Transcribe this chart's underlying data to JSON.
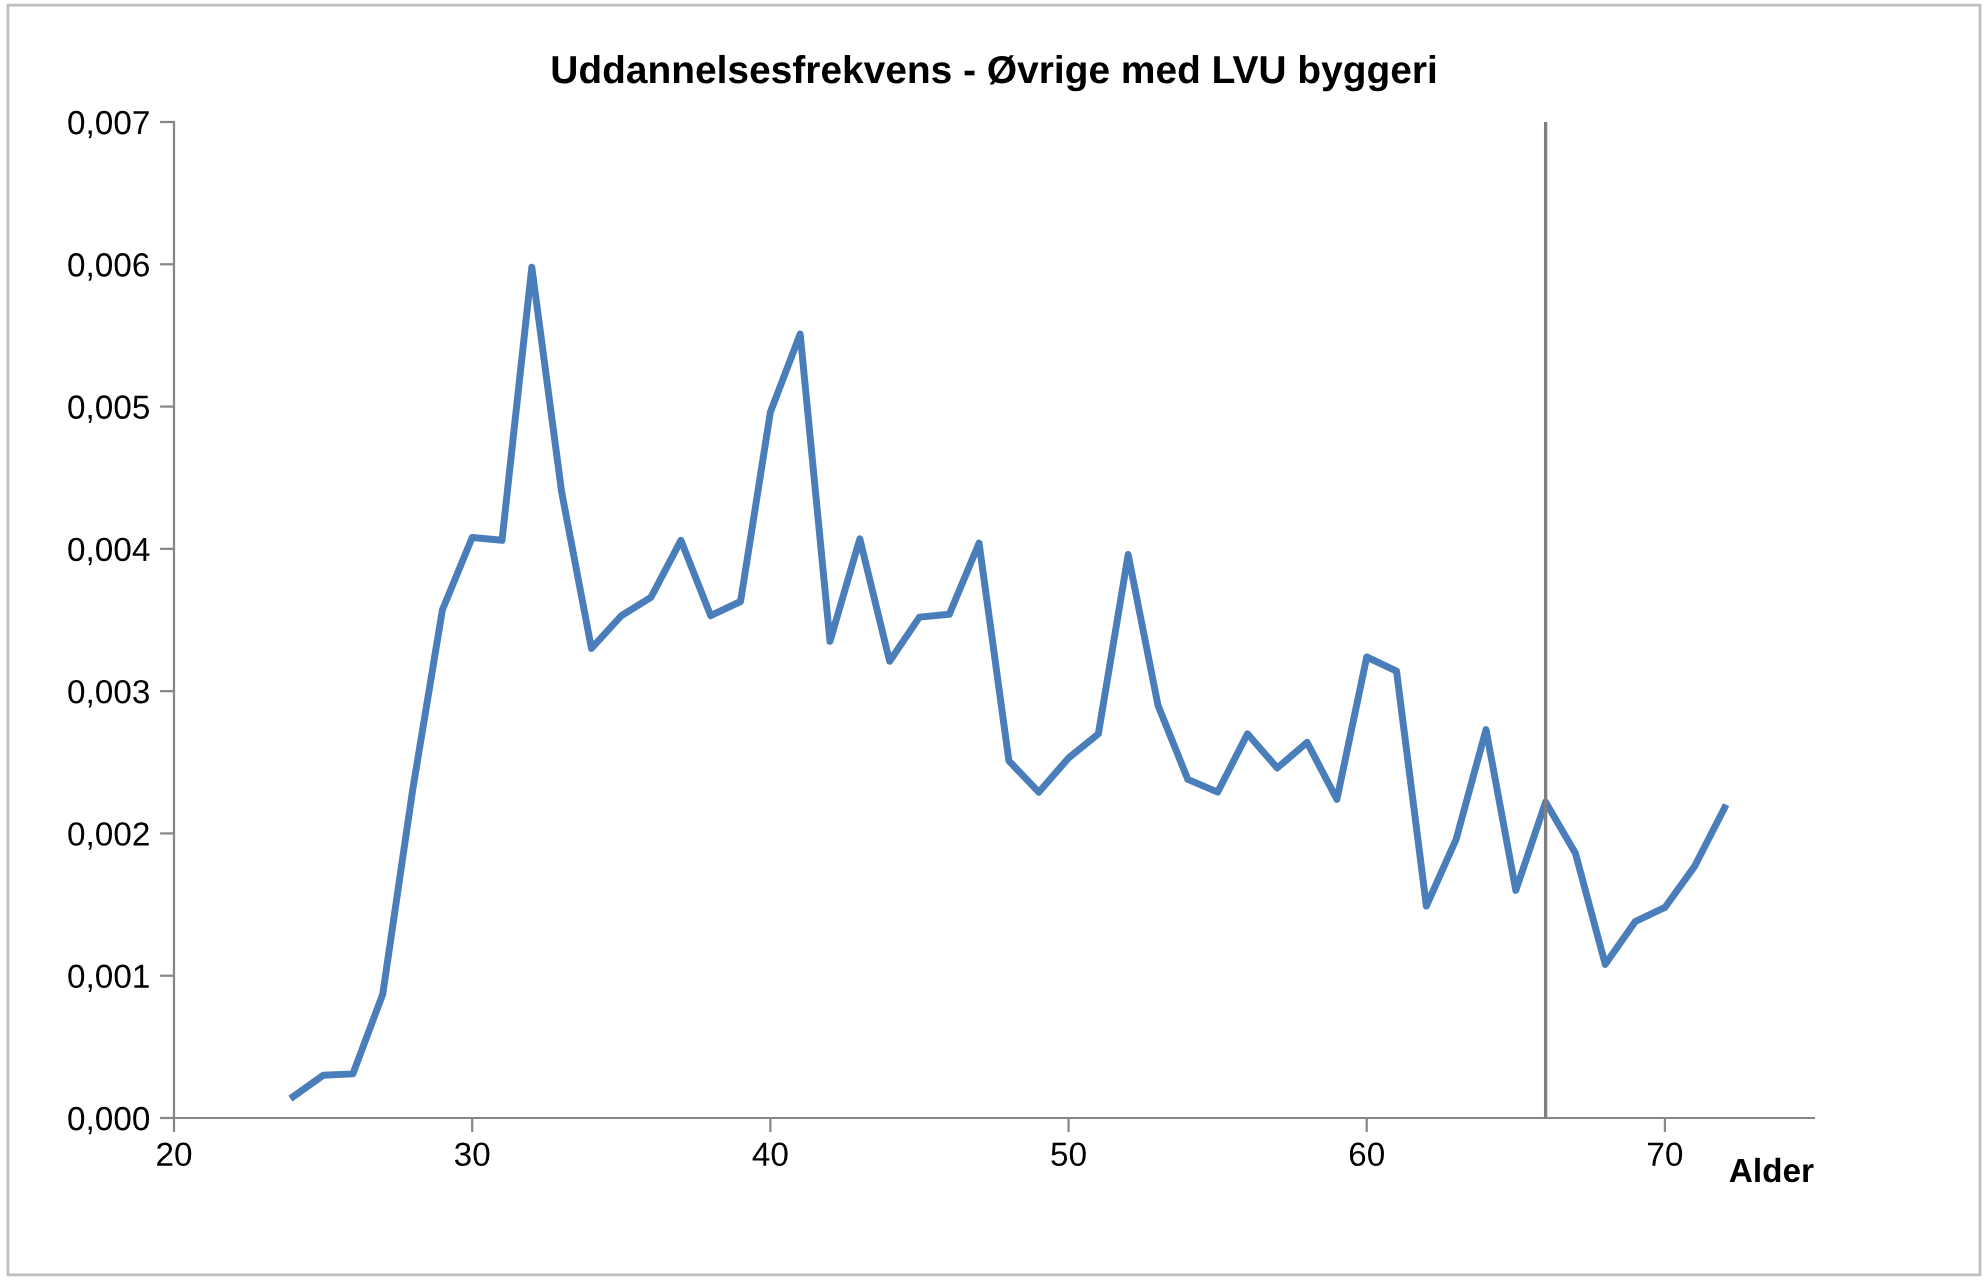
{
  "chart_data": {
    "type": "line",
    "title": "Uddannelsesfrekvens - Øvrige med LVU byggeri",
    "xlabel": "Alder",
    "x": [
      24,
      25,
      26,
      27,
      28,
      29,
      30,
      31,
      32,
      33,
      34,
      35,
      36,
      37,
      38,
      39,
      40,
      41,
      42,
      43,
      44,
      45,
      46,
      47,
      48,
      49,
      50,
      51,
      52,
      53,
      54,
      55,
      56,
      57,
      58,
      59,
      60,
      61,
      62,
      63,
      64,
      65,
      66,
      67,
      68,
      69,
      70,
      71,
      72
    ],
    "series": [
      {
        "color": "#4a7ebb",
        "values": [
          0.00015,
          0.0003,
          0.00031,
          0.00087,
          0.0023,
          0.00357,
          0.00408,
          0.00406,
          0.00598,
          0.0044,
          0.0033,
          0.00353,
          0.00366,
          0.00406,
          0.00353,
          0.00363,
          0.00496,
          0.00551,
          0.00335,
          0.00407,
          0.00321,
          0.00352,
          0.00354,
          0.00404,
          0.00251,
          0.00229,
          0.00253,
          0.0027,
          0.00396,
          0.0029,
          0.00238,
          0.00229,
          0.0027,
          0.00246,
          0.00264,
          0.00224,
          0.00324,
          0.00314,
          0.00149,
          0.00196,
          0.00273,
          0.0016,
          0.00222,
          0.00186,
          0.00108,
          0.00138,
          0.00148,
          0.00177,
          0.00218
        ]
      }
    ],
    "xlim": [
      20,
      75
    ],
    "xticks": [
      20,
      30,
      40,
      50,
      60,
      70
    ],
    "ylim": [
      0,
      0.007
    ],
    "yticks": [
      {
        "value": 0,
        "label": "0,000"
      },
      {
        "value": 0.001,
        "label": "0,001"
      },
      {
        "value": 0.002,
        "label": "0,002"
      },
      {
        "value": 0.003,
        "label": "0,003"
      },
      {
        "value": 0.004,
        "label": "0,004"
      },
      {
        "value": 0.005,
        "label": "0,005"
      },
      {
        "value": 0.006,
        "label": "0,006"
      },
      {
        "value": 0.007,
        "label": "0,007"
      }
    ],
    "ref_lines": [
      {
        "axis": "x",
        "value": 66,
        "color": "#7f7f7f"
      }
    ],
    "grid": false,
    "legend": false,
    "marker": "none",
    "line_style": "solid"
  }
}
